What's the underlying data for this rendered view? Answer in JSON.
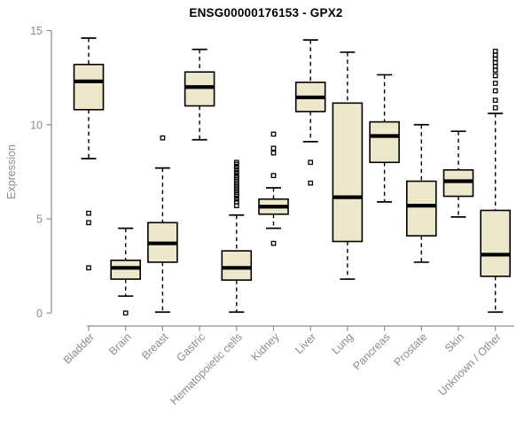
{
  "chart_data": {
    "type": "boxplot",
    "title": "ENSG00000176153 - GPX2",
    "ylabel": "Expression",
    "xlabel": "",
    "ylim": [
      0,
      15
    ],
    "yticks": [
      0,
      5,
      10,
      15
    ],
    "grid": false,
    "legend": false,
    "categories": [
      "Bladder",
      "Brain",
      "Breast",
      "Gastric",
      "Hematopoietic cells",
      "Kidney",
      "Liver",
      "Lung",
      "Pancreas",
      "Prostate",
      "Skin",
      "Unknown / Other"
    ],
    "boxes": [
      {
        "category": "Bladder",
        "whisker_low": 8.2,
        "q1": 10.8,
        "median": 12.3,
        "q3": 13.2,
        "whisker_high": 14.6,
        "outliers": [
          5.3,
          4.8,
          2.4
        ]
      },
      {
        "category": "Brain",
        "whisker_low": 0.9,
        "q1": 1.8,
        "median": 2.4,
        "q3": 2.8,
        "whisker_high": 4.5,
        "outliers": [
          0.0
        ]
      },
      {
        "category": "Breast",
        "whisker_low": 0.05,
        "q1": 2.7,
        "median": 3.7,
        "q3": 4.8,
        "whisker_high": 7.7,
        "outliers": [
          9.3
        ]
      },
      {
        "category": "Gastric",
        "whisker_low": 9.2,
        "q1": 11.0,
        "median": 12.0,
        "q3": 12.8,
        "whisker_high": 14.0,
        "outliers": []
      },
      {
        "category": "Hematopoietic cells",
        "whisker_low": 0.05,
        "q1": 1.75,
        "median": 2.4,
        "q3": 3.3,
        "whisker_high": 5.2,
        "outliers": [
          5.7,
          5.9,
          6.05,
          6.2,
          6.3,
          6.4,
          6.5,
          6.6,
          6.7,
          6.8,
          6.9,
          7.0,
          7.1,
          7.2,
          7.3,
          7.45,
          7.6,
          7.75,
          7.9,
          8.0
        ]
      },
      {
        "category": "Kidney",
        "whisker_low": 4.5,
        "q1": 5.25,
        "median": 5.65,
        "q3": 6.05,
        "whisker_high": 6.65,
        "outliers": [
          9.5,
          8.75,
          8.5,
          7.3,
          3.7
        ]
      },
      {
        "category": "Liver",
        "whisker_low": 9.1,
        "q1": 10.7,
        "median": 11.45,
        "q3": 12.25,
        "whisker_high": 14.5,
        "outliers": [
          8.0,
          6.9
        ]
      },
      {
        "category": "Lung",
        "whisker_low": 1.8,
        "q1": 3.8,
        "median": 6.15,
        "q3": 11.15,
        "whisker_high": 13.85,
        "outliers": []
      },
      {
        "category": "Pancreas",
        "whisker_low": 5.9,
        "q1": 8.0,
        "median": 9.4,
        "q3": 10.15,
        "whisker_high": 12.65,
        "outliers": []
      },
      {
        "category": "Prostate",
        "whisker_low": 2.7,
        "q1": 4.1,
        "median": 5.7,
        "q3": 7.0,
        "whisker_high": 10.0,
        "outliers": []
      },
      {
        "category": "Skin",
        "whisker_low": 5.1,
        "q1": 6.2,
        "median": 7.0,
        "q3": 7.6,
        "whisker_high": 9.65,
        "outliers": []
      },
      {
        "category": "Unknown / Other",
        "whisker_low": 0.05,
        "q1": 1.95,
        "median": 3.1,
        "q3": 5.45,
        "whisker_high": 10.6,
        "outliers": [
          10.9,
          11.3,
          11.8,
          12.2,
          12.6,
          12.9,
          13.1,
          13.3,
          13.5,
          13.7,
          13.9
        ]
      }
    ],
    "colors": {
      "box_fill": "#EDE8CC",
      "box_stroke": "#000000",
      "median": "#000000",
      "whisker": "#000000",
      "outlier": "#000000",
      "axis": "#8C8C8C",
      "tick_label": "#8C8C8C",
      "title": "#000000",
      "background": "#FFFFFF"
    }
  }
}
